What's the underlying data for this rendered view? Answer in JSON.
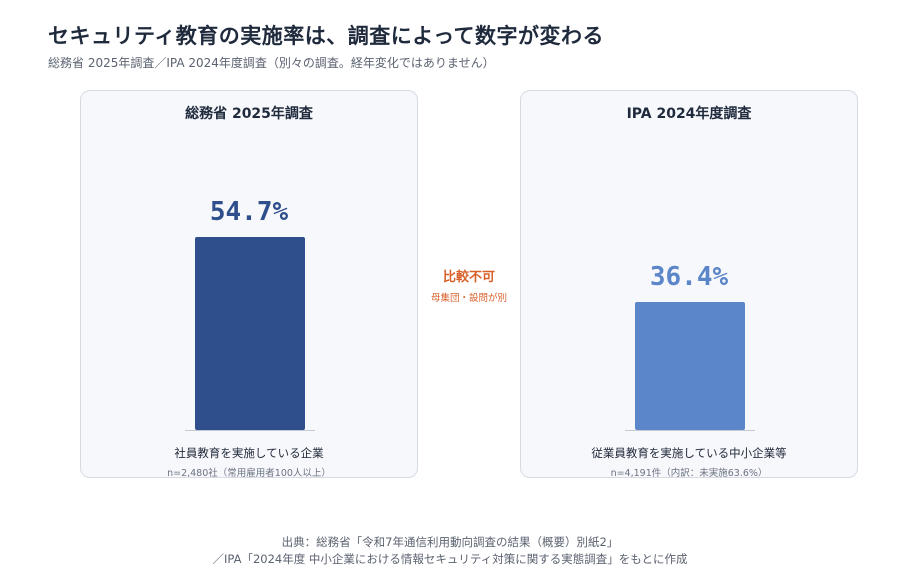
{
  "title": "セキュリティ教育の実施率は、調査によって数字が変わる",
  "subtitle": "総務省 2025年調査／IPA 2024年度調査（別々の調査。経年変化ではありません）",
  "comparison": {
    "label": "比較不可",
    "note": "母集団・設問が別"
  },
  "source": {
    "line1": "出典：総務省「令和7年通信利用動向調査の結果（概要）別紙2」",
    "line2": "／IPA「2024年度 中小企業における情報セキュリティ対策に関する実態調査」をもとに作成"
  },
  "colors": {
    "left_bar": "#2f4f8c",
    "right_bar": "#5b86c9",
    "accent": "#d9602a"
  },
  "chart_data": [
    {
      "type": "bar",
      "title": "総務省 2025年調査",
      "categories": [
        "社員教育を実施している企業"
      ],
      "values": [
        54.7
      ],
      "value_label": "54.7%",
      "note": "n=2,480社（常用雇用者100人以上）",
      "ylim": [
        0,
        68
      ]
    },
    {
      "type": "bar",
      "title": "IPA 2024年度調査",
      "categories": [
        "従業員教育を実施している中小企業等"
      ],
      "values": [
        36.4
      ],
      "value_label": "36.4%",
      "note": "n=4,191件（内訳：未実施63.6%）",
      "ylim": [
        0,
        68
      ]
    }
  ]
}
